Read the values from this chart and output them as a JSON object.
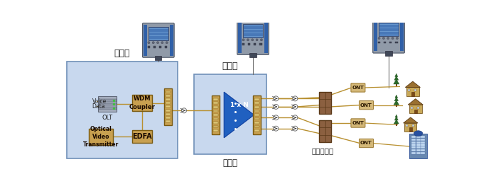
{
  "central_office_label": "中心局",
  "splitter_label": "分路器",
  "distribution_frame_label": "配线架",
  "transmission_end_label": "传输线终端",
  "olt_label": "OLT",
  "wdm_label": "WDM\nCoupler",
  "edfa_label": "EDFA",
  "optical_video_label": "Optical\nVideo\nTransmitter",
  "voice_label": "Voice",
  "data_label": "Data",
  "splitter_ratio_label": "1 x N",
  "ont_label": "ONT",
  "central_box_color": "#c8d8ee",
  "central_box_edge": "#7090b8",
  "splitter_box_color": "#c8d8ee",
  "splitter_box_edge": "#7090b8",
  "component_box_color": "#c8a050",
  "component_box_edge": "#7a5a10",
  "ont_box_color": "#d4b878",
  "ont_box_edge": "#9a7830",
  "line_color": "#b89030",
  "text_color": "#222222",
  "otdr_gray": "#8090a0",
  "otdr_dark": "#505868",
  "otdr_blue": "#3060a8",
  "otdr_screen": "#4878c0",
  "dist_frame_color": "#8B6040",
  "dist_frame_edge": "#5a3818",
  "blue_arrow_color": "#2060c0",
  "tree_green": "#2a6a28",
  "trunk_color": "#7a4a20",
  "house_wall": "#c8a858",
  "house_roof": "#9a7030",
  "building_color": "#6888b0",
  "building_window": "#c0d8f0"
}
